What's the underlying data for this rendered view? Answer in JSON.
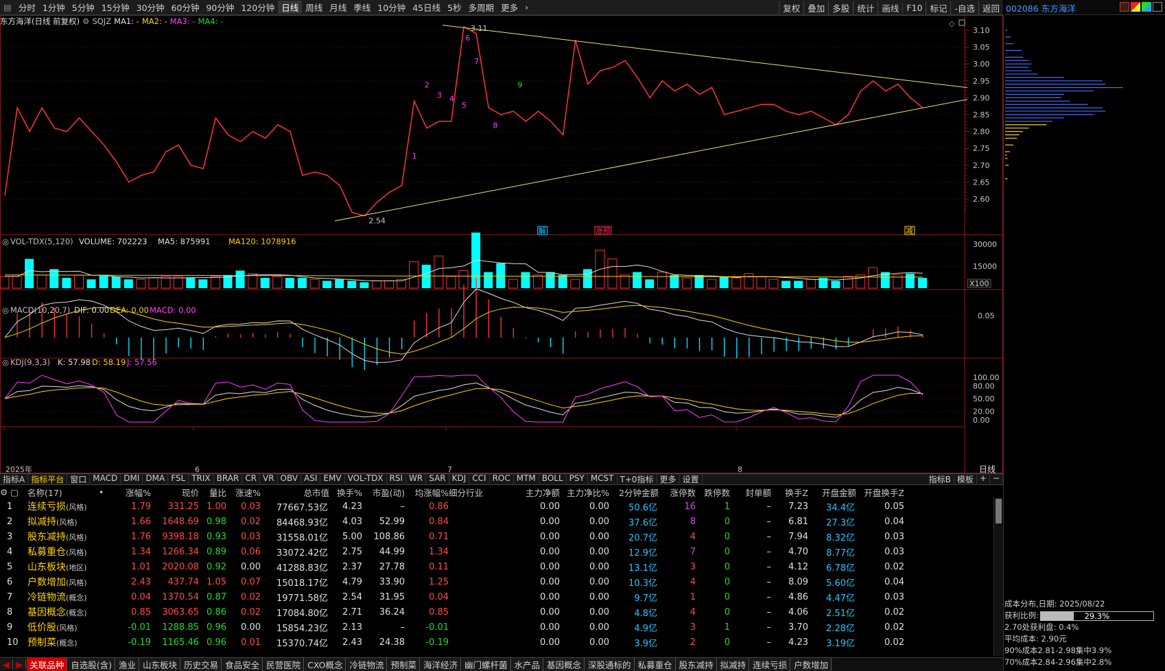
{
  "toolbar": {
    "periods": [
      "分时",
      "1分钟",
      "5分钟",
      "15分钟",
      "30分钟",
      "60分钟",
      "90分钟",
      "120分钟",
      "日线",
      "周线",
      "月线",
      "季线",
      "10分钟",
      "45日线",
      "5秒",
      "多周期",
      "更多"
    ],
    "active_period": "日线",
    "right_buttons": [
      "复权",
      "叠加",
      "多股",
      "统计",
      "画线",
      "F10",
      "标记",
      "-自选",
      "返回"
    ]
  },
  "stock_header": {
    "code_name": "002086 东方海洋"
  },
  "main_chart": {
    "title": "东方海洋(日线 前复权)",
    "indicator": "SQJZ",
    "ma_labels": [
      "MA1: -",
      "MA2: -",
      "MA3: -",
      "MA4: -"
    ],
    "price_ticks": [
      "3.10",
      "3.05",
      "3.00",
      "2.95",
      "2.90",
      "2.85",
      "2.80",
      "2.75",
      "2.70",
      "2.65",
      "2.60"
    ],
    "high_label": "3.11",
    "low_label": "2.54",
    "count_labels": [
      "1",
      "2",
      "3",
      "4",
      "5",
      "6",
      "7",
      "8",
      "9"
    ],
    "event_tags": [
      "解",
      "涨预",
      "减"
    ]
  },
  "volume_pane": {
    "title": "VOL-TDX(5,120)",
    "volume": "VOLUME: 702223",
    "ma5": "MA5: 875991",
    "ma120": "MA120: 1078916",
    "ticks": [
      "30000",
      "15000"
    ],
    "unit": "X100"
  },
  "macd_pane": {
    "title": "MACD(10,20,7)",
    "dif": "DIF: 0.00",
    "dea": "DEA: 0.00",
    "macd": "MACD: 0.00",
    "ticks": [
      "0.05"
    ]
  },
  "kdj_pane": {
    "title": "KDJ(9,3,3)",
    "k": "K: 57.98",
    "d": "D: 58.19",
    "j": "J: 57.56",
    "ticks": [
      "100.00",
      "80.00",
      "50.00",
      "20.00",
      "0.00"
    ]
  },
  "x_axis": {
    "labels": [
      "2025年",
      "6",
      "7",
      "8"
    ],
    "period": "日线"
  },
  "indicator_tabs": [
    "指标A",
    "指标平台",
    "窗口",
    "MACD",
    "DMI",
    "DMA",
    "FSL",
    "TRIX",
    "BRAR",
    "CR",
    "VR",
    "OBV",
    "ASI",
    "EMV",
    "VOL-TDX",
    "RSI",
    "WR",
    "SAR",
    "KDJ",
    "CCI",
    "ROC",
    "MTM",
    "BOLL",
    "PSY",
    "MCST",
    "T+0指标",
    "更多",
    "设置"
  ],
  "indicator_tabs_right": [
    "指标B",
    "模板",
    "+",
    "−"
  ],
  "table": {
    "headers": [
      "",
      "名称(17)",
      "",
      "涨幅%",
      "现价",
      "量比",
      "涨速%",
      "总市值",
      "换手%",
      "市盈(动)",
      "均涨幅%",
      "细分行业",
      "主力净额",
      "主力净比%",
      "2分钟金额",
      "涨停数",
      "跌停数",
      "封单额",
      "换手Z",
      "开盘金额",
      "开盘换手Z"
    ],
    "rows": [
      {
        "n": "1",
        "name": "连续亏损",
        "tag": "(风格)",
        "chg": "1.79",
        "price": "331.25",
        "lb": "1.00",
        "spd": "0.03",
        "mv": "77667.53亿",
        "hs": "4.23",
        "pe": "–",
        "avg": "0.86",
        "ind": "",
        "zl": "0.00",
        "zlb": "0.00",
        "m2": "50.6亿",
        "zt": "16",
        "dt": "1",
        "fd": "–",
        "hsz": "7.23",
        "kp": "34.4亿",
        "kphs": "0.05"
      },
      {
        "n": "2",
        "name": "拟减持",
        "tag": "(风格)",
        "chg": "1.66",
        "price": "1648.69",
        "lb": "0.98",
        "spd": "0.02",
        "mv": "84468.93亿",
        "hs": "4.03",
        "pe": "52.99",
        "avg": "0.84",
        "ind": "",
        "zl": "0.00",
        "zlb": "0.00",
        "m2": "37.6亿",
        "zt": "8",
        "dt": "0",
        "fd": "–",
        "hsz": "6.81",
        "kp": "27.3亿",
        "kphs": "0.04"
      },
      {
        "n": "3",
        "name": "股东减持",
        "tag": "(风格)",
        "chg": "1.76",
        "price": "9398.18",
        "lb": "0.93",
        "spd": "0.03",
        "mv": "31558.01亿",
        "hs": "5.00",
        "pe": "108.86",
        "avg": "0.71",
        "ind": "",
        "zl": "0.00",
        "zlb": "0.00",
        "m2": "20.7亿",
        "zt": "4",
        "dt": "0",
        "fd": "–",
        "hsz": "7.94",
        "kp": "8.32亿",
        "kphs": "0.03"
      },
      {
        "n": "4",
        "name": "私募重仓",
        "tag": "(风格)",
        "chg": "1.34",
        "price": "1266.34",
        "lb": "0.89",
        "spd": "0.06",
        "mv": "33072.42亿",
        "hs": "2.75",
        "pe": "44.99",
        "avg": "1.34",
        "ind": "",
        "zl": "0.00",
        "zlb": "0.00",
        "m2": "12.9亿",
        "zt": "7",
        "dt": "0",
        "fd": "–",
        "hsz": "4.70",
        "kp": "8.77亿",
        "kphs": "0.03"
      },
      {
        "n": "5",
        "name": "山东板块",
        "tag": "(地区)",
        "chg": "1.01",
        "price": "2020.08",
        "lb": "0.92",
        "spd": "0.00",
        "mv": "41288.83亿",
        "hs": "2.37",
        "pe": "27.78",
        "avg": "0.11",
        "ind": "",
        "zl": "0.00",
        "zlb": "0.00",
        "m2": "13.1亿",
        "zt": "3",
        "dt": "0",
        "fd": "–",
        "hsz": "4.12",
        "kp": "6.78亿",
        "kphs": "0.02"
      },
      {
        "n": "6",
        "name": "户数增加",
        "tag": "(风格)",
        "chg": "2.43",
        "price": "437.74",
        "lb": "1.05",
        "spd": "0.07",
        "mv": "15018.17亿",
        "hs": "4.79",
        "pe": "33.90",
        "avg": "1.25",
        "ind": "",
        "zl": "0.00",
        "zlb": "0.00",
        "m2": "10.3亿",
        "zt": "4",
        "dt": "0",
        "fd": "–",
        "hsz": "8.09",
        "kp": "5.60亿",
        "kphs": "0.04"
      },
      {
        "n": "7",
        "name": "冷链物流",
        "tag": "(概念)",
        "chg": "0.04",
        "price": "1370.54",
        "lb": "0.87",
        "spd": "0.02",
        "mv": "19771.58亿",
        "hs": "2.54",
        "pe": "31.95",
        "avg": "0.04",
        "ind": "",
        "zl": "0.00",
        "zlb": "0.00",
        "m2": "9.7亿",
        "zt": "1",
        "dt": "0",
        "fd": "–",
        "hsz": "4.86",
        "kp": "4.47亿",
        "kphs": "0.03"
      },
      {
        "n": "8",
        "name": "基因概念",
        "tag": "(概念)",
        "chg": "0.85",
        "price": "3063.65",
        "lb": "0.86",
        "spd": "0.02",
        "mv": "17084.80亿",
        "hs": "2.71",
        "pe": "36.24",
        "avg": "0.85",
        "ind": "",
        "zl": "0.00",
        "zlb": "0.00",
        "m2": "4.8亿",
        "zt": "4",
        "dt": "0",
        "fd": "–",
        "hsz": "4.06",
        "kp": "2.51亿",
        "kphs": "0.02"
      },
      {
        "n": "9",
        "name": "低价股",
        "tag": "(风格)",
        "chg": "-0.01",
        "price": "1288.85",
        "lb": "0.96",
        "spd": "0.00",
        "mv": "15854.23亿",
        "hs": "2.13",
        "pe": "–",
        "avg": "-0.01",
        "ind": "",
        "zl": "0.00",
        "zlb": "0.00",
        "m2": "4.9亿",
        "zt": "3",
        "dt": "1",
        "fd": "–",
        "hsz": "3.70",
        "kp": "2.28亿",
        "kphs": "0.02"
      },
      {
        "n": "10",
        "name": "预制菜",
        "tag": "(概念)",
        "chg": "-0.19",
        "price": "1165.46",
        "lb": "0.96",
        "spd": "0.01",
        "mv": "15370.74亿",
        "hs": "2.43",
        "pe": "24.38",
        "avg": "-0.19",
        "ind": "",
        "zl": "0.00",
        "zlb": "0.00",
        "m2": "3.9亿",
        "zt": "2",
        "dt": "0",
        "fd": "–",
        "hsz": "4.23",
        "kp": "3.19亿",
        "kphs": "0.02"
      }
    ]
  },
  "bottom_tabs": [
    "关联品种",
    "自选股(含)",
    "渔业",
    "山东板块",
    "历史交易",
    "食品安全",
    "民营医院",
    "CXO概念",
    "冷链物流",
    "预制菜",
    "海洋经济",
    "幽门螺杆菌",
    "水产品",
    "基因概念",
    "深股通标的",
    "私募重仓",
    "股东减持",
    "拟减持",
    "连续亏损",
    "户数增加"
  ],
  "cost": {
    "title": "成本分布,日期: 2025/08/22",
    "profit_label": "获利比例:",
    "profit_value": "29.3%",
    "profit_fraction": 0.293,
    "line1": "2.70处获利盘: 0.4%",
    "line2": "平均成本: 2.90元",
    "line3": "90%成本2.81-2.98集中3.9%",
    "line4": "70%成本2.84-2.96集中2.8%"
  },
  "colors": {
    "up": "#ff4a4a",
    "down": "#22dd22",
    "bar_up": "#ff3030",
    "bar_down": "#00ffff",
    "trend": "#e8e870"
  }
}
